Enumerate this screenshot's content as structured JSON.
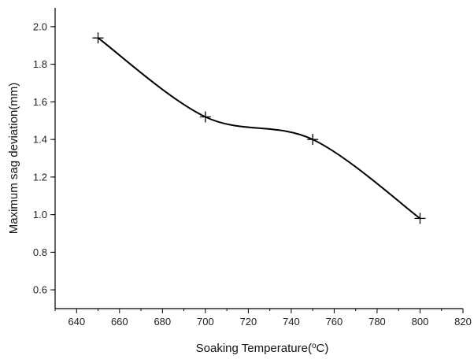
{
  "chart_data": {
    "type": "line",
    "title": "",
    "xlabel": "Soaking Temperature(",
    "xlabel_sup": "o",
    "xlabel_suffix": "C)",
    "ylabel": "Maximum sag deviation(mm)",
    "xlim": [
      630,
      820
    ],
    "ylim": [
      0.5,
      2.1
    ],
    "x_ticks": [
      640,
      660,
      680,
      700,
      720,
      740,
      760,
      780,
      800,
      820
    ],
    "y_ticks": [
      0.6,
      0.8,
      1.0,
      1.2,
      1.4,
      1.6,
      1.8,
      2.0
    ],
    "y_tick_labels": [
      "0.6",
      "0.8",
      "1.0",
      "1.2",
      "1.4",
      "1.6",
      "1.8",
      "2.0"
    ],
    "grid": false,
    "legend": "none",
    "marker": "plus",
    "line_color": "#000000",
    "series": [
      {
        "x": [
          650,
          700,
          750,
          800
        ],
        "y": [
          1.94,
          1.52,
          1.4,
          0.98
        ]
      }
    ]
  }
}
